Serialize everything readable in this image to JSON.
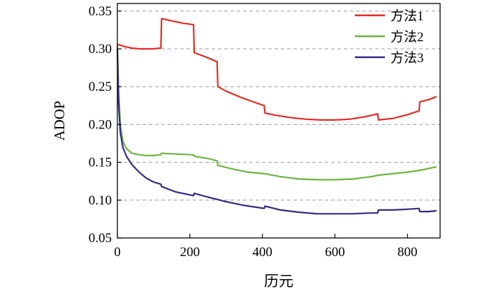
{
  "chart_data": {
    "type": "line",
    "title": "",
    "xlabel": "历元",
    "ylabel": "ADOP",
    "xlim": [
      0,
      890
    ],
    "ylim": [
      0.05,
      0.36
    ],
    "xticks": [
      0,
      200,
      400,
      600,
      800
    ],
    "xtick_labels": [
      "0",
      "200",
      "400",
      "600",
      "800"
    ],
    "yticks": [
      0.05,
      0.1,
      0.15,
      0.2,
      0.25,
      0.3,
      0.35
    ],
    "ytick_labels": [
      "0.05",
      "0.10",
      "0.15",
      "0.20",
      "0.25",
      "0.30",
      "0.35"
    ],
    "grid": "horizontal dashed",
    "legend_position": "top-right",
    "series": [
      {
        "name": "方法1",
        "color": "#e32b23",
        "x": [
          0,
          20,
          40,
          60,
          80,
          100,
          120,
          122,
          150,
          180,
          210,
          212,
          240,
          260,
          275,
          277,
          300,
          340,
          380,
          405,
          407,
          440,
          480,
          520,
          560,
          600,
          640,
          680,
          718,
          720,
          760,
          800,
          832,
          834,
          860,
          880
        ],
        "y": [
          0.306,
          0.303,
          0.301,
          0.3,
          0.3,
          0.3,
          0.301,
          0.34,
          0.337,
          0.334,
          0.332,
          0.295,
          0.29,
          0.286,
          0.283,
          0.25,
          0.244,
          0.236,
          0.229,
          0.225,
          0.215,
          0.212,
          0.209,
          0.207,
          0.206,
          0.206,
          0.207,
          0.21,
          0.214,
          0.206,
          0.208,
          0.213,
          0.218,
          0.23,
          0.233,
          0.237
        ]
      },
      {
        "name": "方法2",
        "color": "#6db33f",
        "x": [
          0,
          3,
          8,
          15,
          25,
          40,
          60,
          80,
          100,
          120,
          122,
          160,
          210,
          212,
          250,
          275,
          277,
          320,
          360,
          405,
          407,
          450,
          500,
          550,
          600,
          650,
          700,
          720,
          760,
          800,
          840,
          880
        ],
        "y": [
          0.305,
          0.25,
          0.2,
          0.178,
          0.168,
          0.162,
          0.16,
          0.159,
          0.159,
          0.16,
          0.162,
          0.161,
          0.16,
          0.158,
          0.155,
          0.152,
          0.146,
          0.141,
          0.137,
          0.135,
          0.135,
          0.131,
          0.128,
          0.127,
          0.127,
          0.128,
          0.131,
          0.133,
          0.135,
          0.137,
          0.14,
          0.144
        ]
      },
      {
        "name": "方法3",
        "color": "#302a83",
        "x": [
          0,
          3,
          8,
          15,
          25,
          40,
          60,
          80,
          100,
          120,
          122,
          160,
          210,
          212,
          250,
          275,
          300,
          350,
          405,
          407,
          450,
          500,
          550,
          600,
          650,
          700,
          718,
          720,
          760,
          800,
          832,
          834,
          860,
          880
        ],
        "y": [
          0.3,
          0.23,
          0.19,
          0.17,
          0.158,
          0.147,
          0.137,
          0.129,
          0.124,
          0.121,
          0.118,
          0.111,
          0.106,
          0.109,
          0.104,
          0.101,
          0.098,
          0.093,
          0.089,
          0.092,
          0.087,
          0.084,
          0.082,
          0.082,
          0.082,
          0.083,
          0.083,
          0.087,
          0.087,
          0.088,
          0.089,
          0.085,
          0.085,
          0.086
        ]
      }
    ]
  }
}
